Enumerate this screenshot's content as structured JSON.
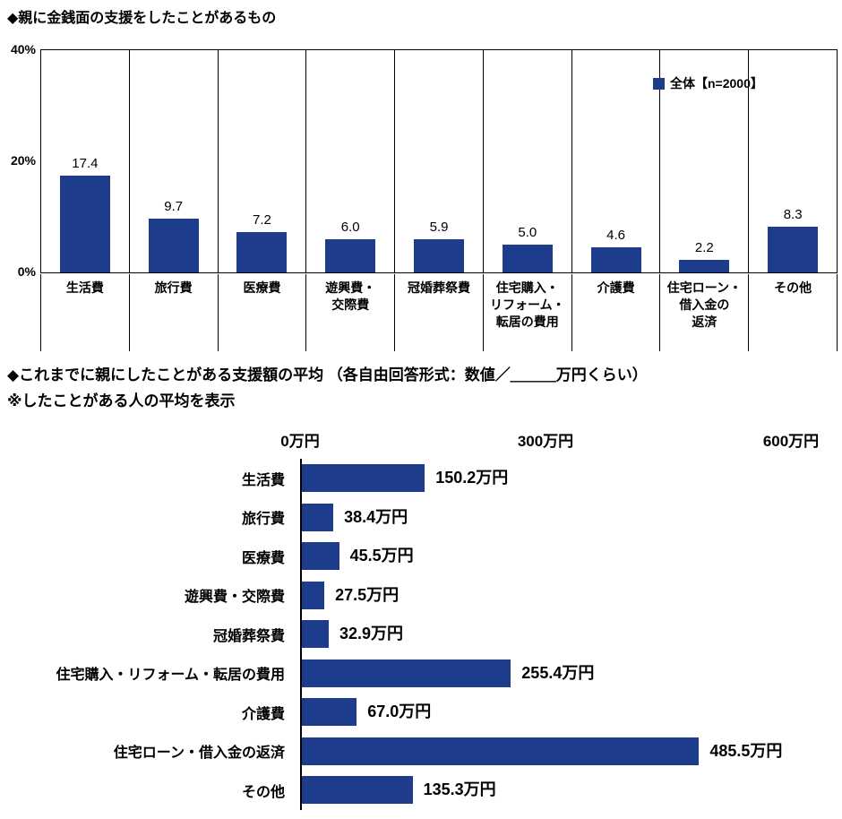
{
  "accent_color": "#1e3c8c",
  "chart_data": [
    {
      "type": "bar",
      "orientation": "vertical",
      "title": "◆親に金銭面の支援をしたことがあるもの",
      "legend": "全体【n=2000】",
      "categories": [
        "生活費",
        "旅行費",
        "医療費",
        "遊興費・\n交際費",
        "冠婚葬祭費",
        "住宅購入・\nリフォーム・\n転居の費用",
        "介護費",
        "住宅ローン・\n借入金の\n返済",
        "その他"
      ],
      "values": [
        17.4,
        9.7,
        7.2,
        6.0,
        5.9,
        5.0,
        4.6,
        2.2,
        8.3
      ],
      "value_labels": [
        "17.4",
        "9.7",
        "7.2",
        "6.0",
        "5.9",
        "5.0",
        "4.6",
        "2.2",
        "8.3"
      ],
      "ylim": [
        0,
        40
      ],
      "yticks": [
        {
          "value": 0,
          "label": "0%"
        },
        {
          "value": 20,
          "label": "20%"
        },
        {
          "value": 40,
          "label": "40%"
        }
      ],
      "bar_color": "#1e3c8c",
      "grid": "vertical category separators, boxed plot area",
      "legend_position": "top-right inside plot"
    },
    {
      "type": "bar",
      "orientation": "horizontal",
      "title": "◆これまでに親にしたことがある支援額の平均 （各自由回答形式：数値／＿＿＿万円くらい）",
      "subtitle": "※したことがある人の平均を表示",
      "categories": [
        "生活費",
        "旅行費",
        "医療費",
        "遊興費・交際費",
        "冠婚葬祭費",
        "住宅購入・リフォーム・転居の費用",
        "介護費",
        "住宅ローン・借入金の返済",
        "その他"
      ],
      "values": [
        150.2,
        38.4,
        45.5,
        27.5,
        32.9,
        255.4,
        67.0,
        485.5,
        135.3
      ],
      "value_labels": [
        "150.2万円",
        "38.4万円",
        "45.5万円",
        "27.5万円",
        "32.9万円",
        "255.4万円",
        "67.0万円",
        "485.5万円",
        "135.3万円"
      ],
      "xlim": [
        0,
        600
      ],
      "xticks": [
        {
          "value": 0,
          "label": "0万円"
        },
        {
          "value": 300,
          "label": "300万円"
        },
        {
          "value": 600,
          "label": "600万円"
        }
      ],
      "bar_color": "#1e3c8c",
      "grid": "left axis line only, tick labels above plot"
    }
  ]
}
